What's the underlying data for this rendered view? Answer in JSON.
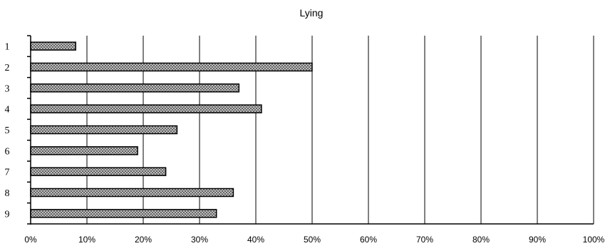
{
  "chart_data": {
    "type": "bar",
    "orientation": "horizontal",
    "title": "Lying",
    "categories": [
      "1",
      "2",
      "3",
      "4",
      "5",
      "6",
      "7",
      "8",
      "9"
    ],
    "values": [
      8,
      50,
      37,
      41,
      26,
      19,
      24,
      36,
      33
    ],
    "xlim": [
      0,
      100
    ],
    "x_ticks": [
      "0%",
      "10%",
      "20%",
      "30%",
      "40%",
      "50%",
      "60%",
      "70%",
      "80%",
      "90%",
      "100%"
    ],
    "grid": true,
    "colors": {
      "bar_fill": "#d8d8d8",
      "bar_hatch": "#555555",
      "line": "#000000"
    }
  }
}
